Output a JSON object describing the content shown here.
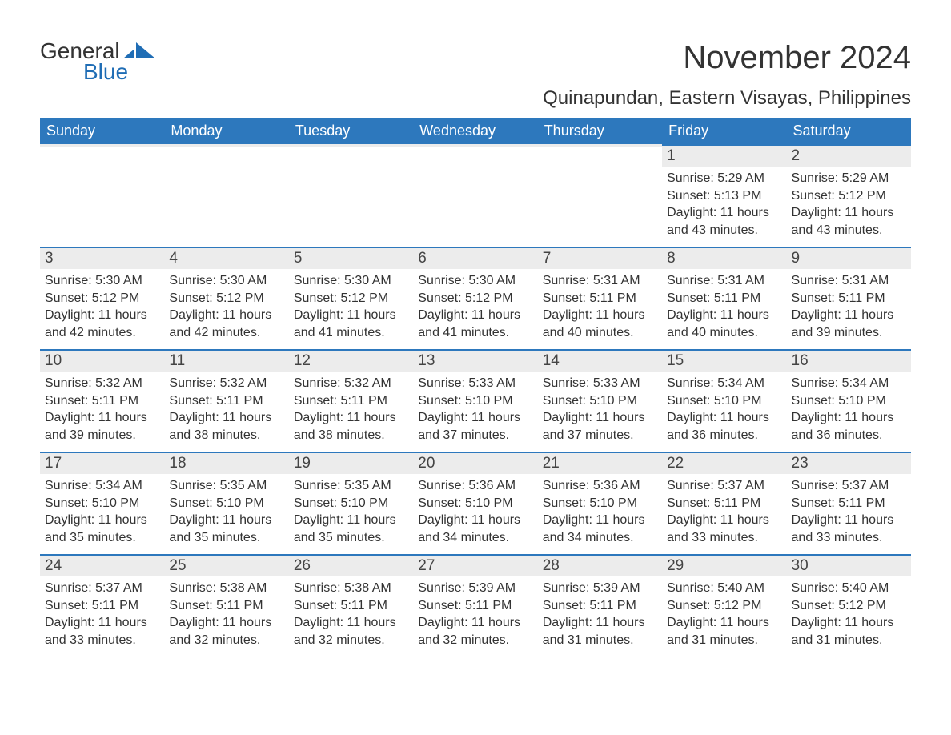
{
  "logo": {
    "word1": "General",
    "word2": "Blue"
  },
  "title": "November 2024",
  "location": "Quinapundan, Eastern Visayas, Philippines",
  "colors": {
    "header_bg": "#2d78bd",
    "header_text": "#ffffff",
    "daynum_bg": "#ececec",
    "row_border": "#2d78bd",
    "text": "#333333",
    "logo_blue": "#1f6db5",
    "background": "#ffffff"
  },
  "weekdays": [
    "Sunday",
    "Monday",
    "Tuesday",
    "Wednesday",
    "Thursday",
    "Friday",
    "Saturday"
  ],
  "weeks": [
    [
      {
        "n": "",
        "sr": "",
        "ss": "",
        "dl": ""
      },
      {
        "n": "",
        "sr": "",
        "ss": "",
        "dl": ""
      },
      {
        "n": "",
        "sr": "",
        "ss": "",
        "dl": ""
      },
      {
        "n": "",
        "sr": "",
        "ss": "",
        "dl": ""
      },
      {
        "n": "",
        "sr": "",
        "ss": "",
        "dl": ""
      },
      {
        "n": "1",
        "sr": "Sunrise: 5:29 AM",
        "ss": "Sunset: 5:13 PM",
        "dl": "Daylight: 11 hours and 43 minutes."
      },
      {
        "n": "2",
        "sr": "Sunrise: 5:29 AM",
        "ss": "Sunset: 5:12 PM",
        "dl": "Daylight: 11 hours and 43 minutes."
      }
    ],
    [
      {
        "n": "3",
        "sr": "Sunrise: 5:30 AM",
        "ss": "Sunset: 5:12 PM",
        "dl": "Daylight: 11 hours and 42 minutes."
      },
      {
        "n": "4",
        "sr": "Sunrise: 5:30 AM",
        "ss": "Sunset: 5:12 PM",
        "dl": "Daylight: 11 hours and 42 minutes."
      },
      {
        "n": "5",
        "sr": "Sunrise: 5:30 AM",
        "ss": "Sunset: 5:12 PM",
        "dl": "Daylight: 11 hours and 41 minutes."
      },
      {
        "n": "6",
        "sr": "Sunrise: 5:30 AM",
        "ss": "Sunset: 5:12 PM",
        "dl": "Daylight: 11 hours and 41 minutes."
      },
      {
        "n": "7",
        "sr": "Sunrise: 5:31 AM",
        "ss": "Sunset: 5:11 PM",
        "dl": "Daylight: 11 hours and 40 minutes."
      },
      {
        "n": "8",
        "sr": "Sunrise: 5:31 AM",
        "ss": "Sunset: 5:11 PM",
        "dl": "Daylight: 11 hours and 40 minutes."
      },
      {
        "n": "9",
        "sr": "Sunrise: 5:31 AM",
        "ss": "Sunset: 5:11 PM",
        "dl": "Daylight: 11 hours and 39 minutes."
      }
    ],
    [
      {
        "n": "10",
        "sr": "Sunrise: 5:32 AM",
        "ss": "Sunset: 5:11 PM",
        "dl": "Daylight: 11 hours and 39 minutes."
      },
      {
        "n": "11",
        "sr": "Sunrise: 5:32 AM",
        "ss": "Sunset: 5:11 PM",
        "dl": "Daylight: 11 hours and 38 minutes."
      },
      {
        "n": "12",
        "sr": "Sunrise: 5:32 AM",
        "ss": "Sunset: 5:11 PM",
        "dl": "Daylight: 11 hours and 38 minutes."
      },
      {
        "n": "13",
        "sr": "Sunrise: 5:33 AM",
        "ss": "Sunset: 5:10 PM",
        "dl": "Daylight: 11 hours and 37 minutes."
      },
      {
        "n": "14",
        "sr": "Sunrise: 5:33 AM",
        "ss": "Sunset: 5:10 PM",
        "dl": "Daylight: 11 hours and 37 minutes."
      },
      {
        "n": "15",
        "sr": "Sunrise: 5:34 AM",
        "ss": "Sunset: 5:10 PM",
        "dl": "Daylight: 11 hours and 36 minutes."
      },
      {
        "n": "16",
        "sr": "Sunrise: 5:34 AM",
        "ss": "Sunset: 5:10 PM",
        "dl": "Daylight: 11 hours and 36 minutes."
      }
    ],
    [
      {
        "n": "17",
        "sr": "Sunrise: 5:34 AM",
        "ss": "Sunset: 5:10 PM",
        "dl": "Daylight: 11 hours and 35 minutes."
      },
      {
        "n": "18",
        "sr": "Sunrise: 5:35 AM",
        "ss": "Sunset: 5:10 PM",
        "dl": "Daylight: 11 hours and 35 minutes."
      },
      {
        "n": "19",
        "sr": "Sunrise: 5:35 AM",
        "ss": "Sunset: 5:10 PM",
        "dl": "Daylight: 11 hours and 35 minutes."
      },
      {
        "n": "20",
        "sr": "Sunrise: 5:36 AM",
        "ss": "Sunset: 5:10 PM",
        "dl": "Daylight: 11 hours and 34 minutes."
      },
      {
        "n": "21",
        "sr": "Sunrise: 5:36 AM",
        "ss": "Sunset: 5:10 PM",
        "dl": "Daylight: 11 hours and 34 minutes."
      },
      {
        "n": "22",
        "sr": "Sunrise: 5:37 AM",
        "ss": "Sunset: 5:11 PM",
        "dl": "Daylight: 11 hours and 33 minutes."
      },
      {
        "n": "23",
        "sr": "Sunrise: 5:37 AM",
        "ss": "Sunset: 5:11 PM",
        "dl": "Daylight: 11 hours and 33 minutes."
      }
    ],
    [
      {
        "n": "24",
        "sr": "Sunrise: 5:37 AM",
        "ss": "Sunset: 5:11 PM",
        "dl": "Daylight: 11 hours and 33 minutes."
      },
      {
        "n": "25",
        "sr": "Sunrise: 5:38 AM",
        "ss": "Sunset: 5:11 PM",
        "dl": "Daylight: 11 hours and 32 minutes."
      },
      {
        "n": "26",
        "sr": "Sunrise: 5:38 AM",
        "ss": "Sunset: 5:11 PM",
        "dl": "Daylight: 11 hours and 32 minutes."
      },
      {
        "n": "27",
        "sr": "Sunrise: 5:39 AM",
        "ss": "Sunset: 5:11 PM",
        "dl": "Daylight: 11 hours and 32 minutes."
      },
      {
        "n": "28",
        "sr": "Sunrise: 5:39 AM",
        "ss": "Sunset: 5:11 PM",
        "dl": "Daylight: 11 hours and 31 minutes."
      },
      {
        "n": "29",
        "sr": "Sunrise: 5:40 AM",
        "ss": "Sunset: 5:12 PM",
        "dl": "Daylight: 11 hours and 31 minutes."
      },
      {
        "n": "30",
        "sr": "Sunrise: 5:40 AM",
        "ss": "Sunset: 5:12 PM",
        "dl": "Daylight: 11 hours and 31 minutes."
      }
    ]
  ]
}
